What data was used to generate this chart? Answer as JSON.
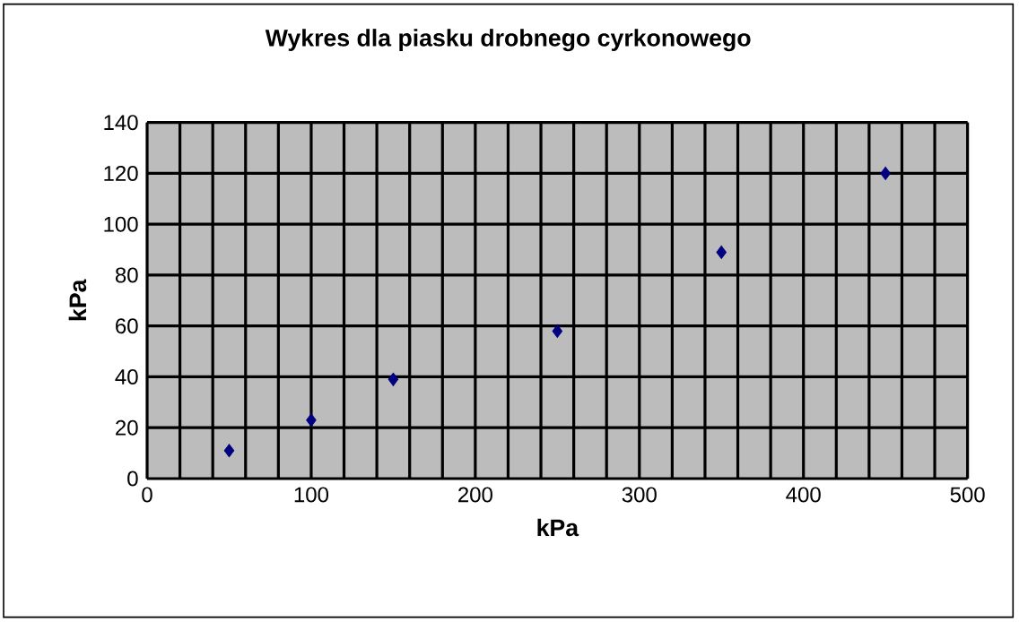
{
  "chart_data": {
    "type": "scatter",
    "title": "Wykres dla piasku drobnego cyrkonowego",
    "xlabel": "kPa",
    "ylabel": "kPa",
    "x": [
      50,
      100,
      150,
      250,
      350,
      450
    ],
    "series": [
      {
        "color": "#000080",
        "values": [
          11,
          23,
          39,
          58,
          89,
          120
        ]
      }
    ],
    "xlim": [
      0,
      500
    ],
    "ylim": [
      0,
      140
    ],
    "xticks": [
      0,
      100,
      200,
      300,
      400,
      500
    ],
    "yticks": [
      0,
      20,
      40,
      60,
      80,
      100,
      120,
      140
    ],
    "grid": true,
    "marker": "diamond"
  }
}
